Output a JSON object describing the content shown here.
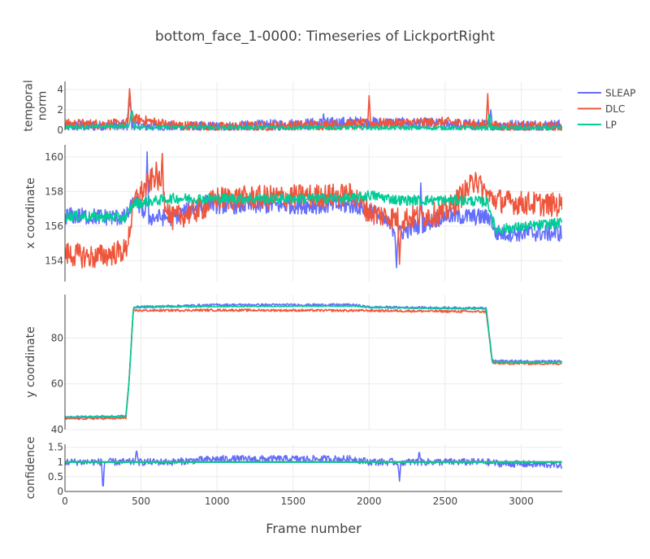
{
  "chart_data": {
    "type": "line",
    "title": "bottom_face_1-0000: Timeseries of LickportRight",
    "xlabel": "Frame number",
    "xlim": [
      0,
      3270
    ],
    "x_ticks": [
      0,
      500,
      1000,
      1500,
      2000,
      2500,
      3000
    ],
    "colors": {
      "SLEAP": "#636efa",
      "DLC": "#ef553b",
      "LP": "#00cc96"
    },
    "legend": {
      "placement": "top-right",
      "entries": [
        {
          "name": "SLEAP",
          "color": "#636efa"
        },
        {
          "name": "DLC",
          "color": "#ef553b"
        },
        {
          "name": "LP",
          "color": "#00cc96"
        }
      ]
    },
    "grid": true,
    "panels": [
      {
        "key": "temporal_norm",
        "ylabel": "temporal norm",
        "ylim": [
          0,
          4.8
        ],
        "y_ticks": [
          0,
          2,
          4
        ],
        "series": [
          {
            "name": "SLEAP",
            "noise": 0.55,
            "anchors": [
              [
                0,
                0.4
              ],
              [
                420,
                0.4
              ],
              [
                430,
                2.8
              ],
              [
                440,
                0.4
              ],
              [
                1000,
                0.3
              ],
              [
                1900,
                0.8
              ],
              [
                2800,
                0.5
              ],
              [
                3270,
                0.5
              ]
            ],
            "spikes": [
              [
                420,
                3.1
              ],
              [
                1700,
                1.6
              ],
              [
                2800,
                2.0
              ]
            ]
          },
          {
            "name": "DLC",
            "noise": 0.5,
            "anchors": [
              [
                0,
                0.6
              ],
              [
                400,
                0.6
              ],
              [
                430,
                1.2
              ],
              [
                700,
                0.5
              ],
              [
                1000,
                0.3
              ],
              [
                1950,
                0.6
              ],
              [
                2500,
                0.8
              ],
              [
                2800,
                0.4
              ],
              [
                3270,
                0.3
              ]
            ],
            "spikes": [
              [
                425,
                4.4
              ],
              [
                2000,
                3.4
              ],
              [
                2780,
                3.6
              ]
            ]
          },
          {
            "name": "LP",
            "noise": 0.2,
            "anchors": [
              [
                0,
                0.3
              ],
              [
                420,
                0.4
              ],
              [
                440,
                1.8
              ],
              [
                460,
                0.3
              ],
              [
                3270,
                0.2
              ]
            ],
            "spikes": [
              [
                440,
                1.9
              ],
              [
                2790,
                1.9
              ]
            ]
          }
        ]
      },
      {
        "key": "x_coordinate",
        "ylabel": "x coordinate",
        "ylim": [
          152.8,
          160.7
        ],
        "y_ticks": [
          154,
          156,
          158,
          160
        ],
        "series": [
          {
            "name": "SLEAP",
            "noise": 0.5,
            "anchors": [
              [
                0,
                156.6
              ],
              [
                400,
                156.5
              ],
              [
                460,
                157.5
              ],
              [
                550,
                156.5
              ],
              [
                700,
                156.5
              ],
              [
                950,
                157.4
              ],
              [
                1000,
                157.2
              ],
              [
                1900,
                157.2
              ],
              [
                2000,
                157.0
              ],
              [
                2200,
                155.6
              ],
              [
                2500,
                156.6
              ],
              [
                2800,
                156.5
              ],
              [
                2830,
                155.6
              ],
              [
                3270,
                155.6
              ]
            ],
            "spikes": [
              [
                540,
                160.3
              ],
              [
                2180,
                153.6
              ],
              [
                2340,
                158.5
              ]
            ]
          },
          {
            "name": "DLC",
            "noise": 0.7,
            "anchors": [
              [
                0,
                154.4
              ],
              [
                200,
                154.2
              ],
              [
                400,
                154.6
              ],
              [
                460,
                157.5
              ],
              [
                600,
                159.0
              ],
              [
                700,
                156.4
              ],
              [
                900,
                157.0
              ],
              [
                1000,
                157.6
              ],
              [
                1900,
                157.8
              ],
              [
                2000,
                156.8
              ],
              [
                2200,
                156.4
              ],
              [
                2500,
                156.8
              ],
              [
                2700,
                158.6
              ],
              [
                2800,
                157.6
              ],
              [
                2900,
                157.4
              ],
              [
                3270,
                157.2
              ]
            ],
            "spikes": [
              [
                640,
                160.2
              ],
              [
                2200,
                153.8
              ],
              [
                2700,
                159.1
              ]
            ]
          },
          {
            "name": "LP",
            "noise": 0.3,
            "anchors": [
              [
                0,
                156.6
              ],
              [
                400,
                156.5
              ],
              [
                450,
                157.3
              ],
              [
                700,
                157.6
              ],
              [
                1000,
                157.6
              ],
              [
                1900,
                157.6
              ],
              [
                2000,
                157.8
              ],
              [
                2200,
                157.5
              ],
              [
                2600,
                157.5
              ],
              [
                2780,
                157.4
              ],
              [
                2830,
                155.8
              ],
              [
                3270,
                156.2
              ]
            ],
            "spikes": []
          }
        ]
      },
      {
        "key": "y_coordinate",
        "ylabel": "y coordinate",
        "ylim": [
          40,
          99
        ],
        "y_ticks": [
          40,
          60,
          80
        ],
        "series": [
          {
            "name": "SLEAP",
            "noise": 0.5,
            "anchors": [
              [
                0,
                45.5
              ],
              [
                400,
                45.8
              ],
              [
                420,
                60.0
              ],
              [
                450,
                93.5
              ],
              [
                1000,
                94.5
              ],
              [
                1900,
                94.5
              ],
              [
                2000,
                93.5
              ],
              [
                2770,
                93.0
              ],
              [
                2810,
                70.0
              ],
              [
                3270,
                69.8
              ]
            ],
            "spikes": []
          },
          {
            "name": "DLC",
            "noise": 0.5,
            "anchors": [
              [
                0,
                44.8
              ],
              [
                400,
                45.0
              ],
              [
                420,
                60.0
              ],
              [
                450,
                92.0
              ],
              [
                1000,
                92.2
              ],
              [
                1900,
                92.0
              ],
              [
                2000,
                92.0
              ],
              [
                2770,
                91.5
              ],
              [
                2810,
                69.0
              ],
              [
                3270,
                68.8
              ]
            ],
            "spikes": []
          },
          {
            "name": "LP",
            "noise": 0.25,
            "anchors": [
              [
                0,
                45.5
              ],
              [
                400,
                45.8
              ],
              [
                420,
                60.0
              ],
              [
                450,
                93.5
              ],
              [
                1000,
                93.8
              ],
              [
                1900,
                94.0
              ],
              [
                2000,
                93.4
              ],
              [
                2770,
                92.8
              ],
              [
                2810,
                69.5
              ],
              [
                3270,
                69.5
              ]
            ],
            "spikes": []
          }
        ]
      },
      {
        "key": "confidence",
        "ylabel": "confidence",
        "ylim": [
          0,
          1.6
        ],
        "y_ticks": [
          0,
          0.5,
          1,
          1.5
        ],
        "y_tick_labels": [
          "0",
          "0.5",
          "1",
          "1.5"
        ],
        "series": [
          {
            "name": "SLEAP",
            "noise": 0.12,
            "anchors": [
              [
                0,
                1.0
              ],
              [
                200,
                1.0
              ],
              [
                400,
                1.0
              ],
              [
                700,
                1.0
              ],
              [
                1000,
                1.1
              ],
              [
                1900,
                1.1
              ],
              [
                2000,
                1.0
              ],
              [
                2500,
                1.0
              ],
              [
                2750,
                1.0
              ],
              [
                2850,
                0.95
              ],
              [
                3270,
                0.9
              ]
            ],
            "spikes": [
              [
                250,
                0.0
              ],
              [
                470,
                1.45
              ],
              [
                2200,
                0.35
              ],
              [
                2330,
                1.4
              ]
            ]
          },
          {
            "name": "DLC",
            "noise": 0,
            "anchors": [
              [
                0,
                1.0
              ],
              [
                3270,
                1.0
              ]
            ],
            "spikes": []
          },
          {
            "name": "LP",
            "noise": 0,
            "anchors": [
              [
                0,
                1.0
              ],
              [
                3270,
                1.0
              ]
            ],
            "spikes": []
          }
        ]
      }
    ]
  }
}
